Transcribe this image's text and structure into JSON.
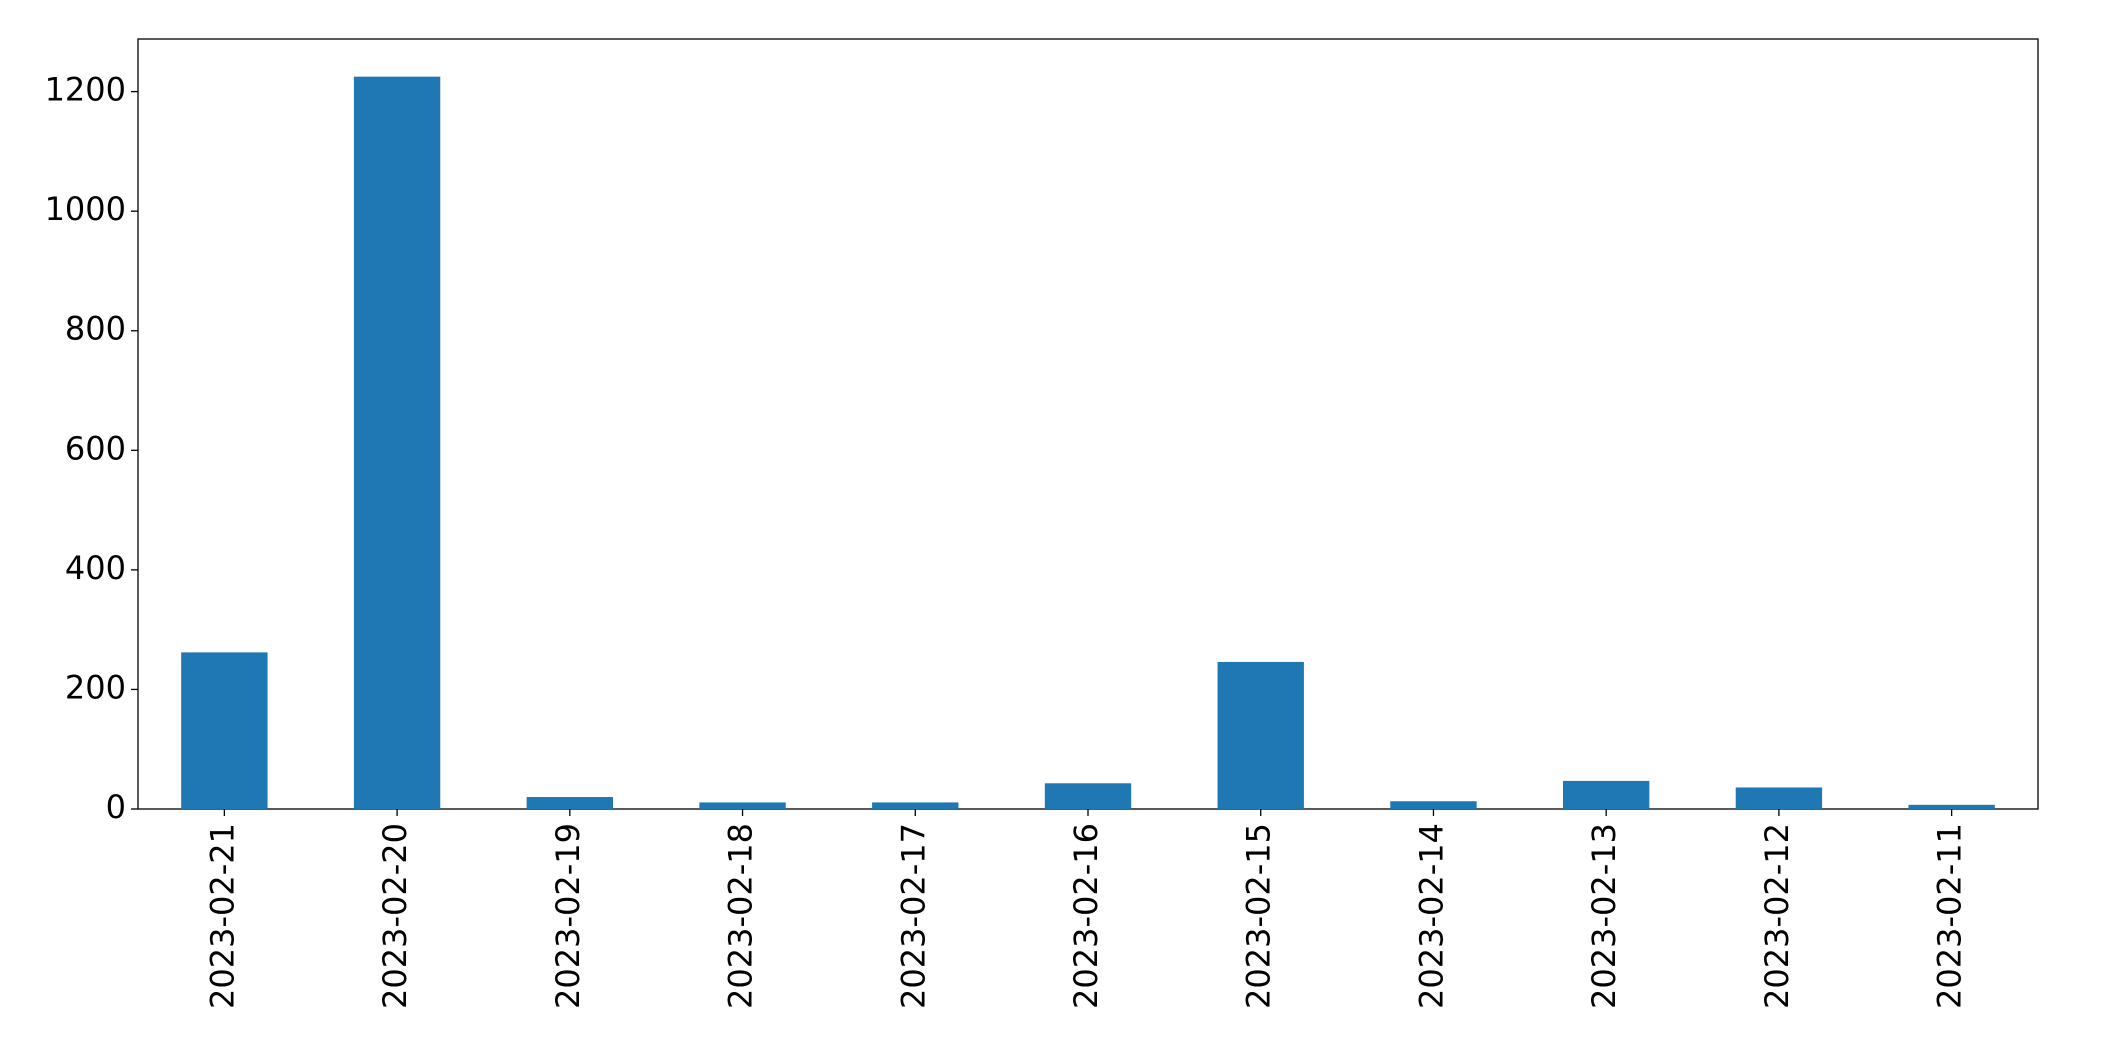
{
  "chart_data": {
    "type": "bar",
    "categories": [
      "2023-02-21",
      "2023-02-20",
      "2023-02-19",
      "2023-02-18",
      "2023-02-17",
      "2023-02-16",
      "2023-02-15",
      "2023-02-14",
      "2023-02-13",
      "2023-02-12",
      "2023-02-11"
    ],
    "values": [
      262,
      1225,
      20,
      11,
      11,
      43,
      246,
      13,
      47,
      36,
      7
    ],
    "color": "#1f77b4",
    "ylim": [
      0,
      1288
    ],
    "yticks": [
      0,
      200,
      400,
      600,
      800,
      1000,
      1200
    ],
    "grid": false
  }
}
